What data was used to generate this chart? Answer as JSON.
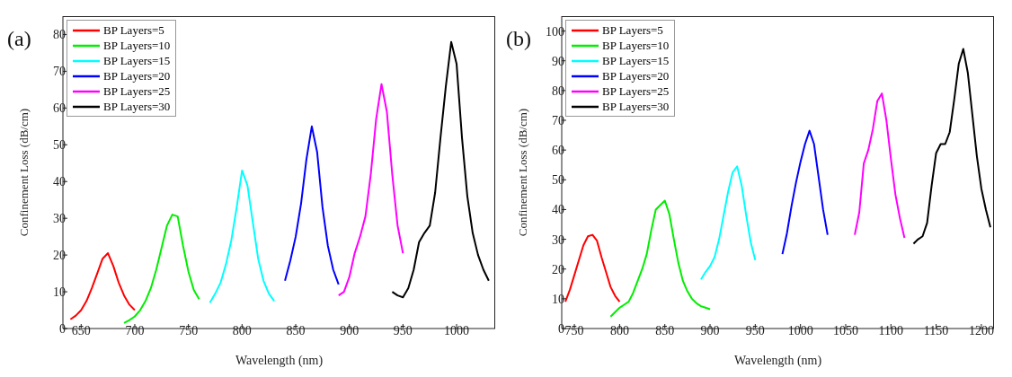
{
  "chart_data": [
    {
      "type": "line",
      "title": "(a)",
      "xlabel": "Wavelength (nm)",
      "ylabel": "Confinement Loss (dB/cm)",
      "xlim": [
        633,
        1036
      ],
      "xticks": [
        650,
        700,
        750,
        800,
        850,
        900,
        950,
        1000
      ],
      "ylim": [
        0,
        85
      ],
      "yticks": [
        0,
        10,
        20,
        30,
        40,
        50,
        60,
        70,
        80
      ],
      "legend": "top left",
      "grid": false,
      "marker": "none",
      "line_style": "solid",
      "series": [
        {
          "name": "BP Layers=5",
          "color": "#ff0000",
          "x": [
            640,
            645,
            650,
            655,
            660,
            665,
            670,
            675,
            680,
            685,
            690,
            695,
            700
          ],
          "values": [
            2.5,
            3.5,
            5,
            7.5,
            11,
            15,
            19,
            20.5,
            17,
            12.5,
            9,
            6.5,
            5
          ]
        },
        {
          "name": "BP Layers=10",
          "color": "#00ee00",
          "x": [
            690,
            695,
            700,
            705,
            710,
            715,
            720,
            725,
            730,
            735,
            740,
            745,
            750,
            755,
            760
          ],
          "values": [
            1.5,
            2.3,
            3.3,
            5,
            7.5,
            11,
            16,
            22,
            28,
            31,
            30.5,
            22.5,
            15.5,
            10.5,
            8
          ]
        },
        {
          "name": "BP Layers=15",
          "color": "#00ffff",
          "x": [
            770,
            775,
            780,
            785,
            790,
            795,
            800,
            805,
            810,
            815,
            820,
            825,
            830
          ],
          "values": [
            7,
            9.5,
            12.5,
            17.5,
            24,
            33,
            43,
            39,
            29,
            19,
            13,
            9.5,
            7.5
          ]
        },
        {
          "name": "BP Layers=20",
          "color": "#0000ff",
          "x": [
            840,
            845,
            850,
            855,
            860,
            865,
            870,
            875,
            880,
            885,
            890
          ],
          "values": [
            13,
            18.5,
            25,
            34,
            46,
            55,
            48,
            33,
            22.5,
            16,
            12
          ]
        },
        {
          "name": "BP Layers=25",
          "color": "#ff00ff",
          "x": [
            890,
            895,
            900,
            905,
            910,
            915,
            920,
            925,
            930,
            935,
            940,
            945,
            950
          ],
          "values": [
            9,
            10,
            14,
            20.5,
            25,
            30.5,
            42,
            57,
            66.5,
            59,
            42,
            28,
            20.5
          ]
        },
        {
          "name": "BP Layers=30",
          "color": "#000000",
          "x": [
            940,
            945,
            950,
            955,
            960,
            965,
            970,
            975,
            980,
            985,
            990,
            995,
            1000,
            1005,
            1010,
            1015,
            1020,
            1025,
            1030
          ],
          "values": [
            10,
            9,
            8.5,
            11,
            16,
            23.5,
            26,
            28,
            37,
            52,
            66,
            78,
            72,
            52,
            36,
            26,
            20,
            16,
            13
          ]
        }
      ]
    },
    {
      "type": "line",
      "title": "(b)",
      "xlabel": "Wavelength (nm)",
      "ylabel": "Confinement Loss (dB/cm)",
      "xlim": [
        736,
        1214
      ],
      "xticks": [
        750,
        800,
        850,
        900,
        950,
        1000,
        1050,
        1100,
        1150,
        1200
      ],
      "ylim": [
        0,
        105
      ],
      "yticks": [
        0,
        10,
        20,
        30,
        40,
        50,
        60,
        70,
        80,
        90,
        100
      ],
      "legend": "top left",
      "grid": false,
      "marker": "none",
      "line_style": "solid",
      "series": [
        {
          "name": "BP Layers=5",
          "color": "#ff0000",
          "x": [
            740,
            745,
            750,
            755,
            760,
            765,
            770,
            775,
            780,
            785,
            790,
            795,
            800
          ],
          "values": [
            9,
            13,
            18,
            23,
            28,
            31,
            31.5,
            29.5,
            24,
            19,
            14,
            11,
            9
          ]
        },
        {
          "name": "BP Layers=10",
          "color": "#00ee00",
          "x": [
            790,
            795,
            800,
            805,
            810,
            815,
            820,
            825,
            830,
            835,
            840,
            845,
            850,
            855,
            860,
            865,
            870,
            875,
            880,
            885,
            890,
            895,
            900
          ],
          "values": [
            4,
            5.5,
            7,
            8,
            9,
            12,
            16,
            20,
            25,
            33,
            40,
            41.5,
            43,
            38.5,
            30,
            22,
            16,
            12.5,
            10,
            8.5,
            7.5,
            7,
            6.5
          ]
        },
        {
          "name": "BP Layers=15",
          "color": "#00ffff",
          "x": [
            890,
            895,
            900,
            905,
            910,
            915,
            920,
            925,
            930,
            935,
            940,
            945,
            950
          ],
          "values": [
            16.5,
            19,
            21,
            24,
            30,
            38,
            46,
            52.5,
            54.5,
            48,
            38,
            29,
            23
          ]
        },
        {
          "name": "BP Layers=20",
          "color": "#0000ff",
          "x": [
            980,
            985,
            990,
            995,
            1000,
            1005,
            1010,
            1015,
            1020,
            1025,
            1030
          ],
          "values": [
            25,
            32,
            41,
            49,
            56,
            62,
            66.5,
            62,
            51,
            40,
            31.5
          ]
        },
        {
          "name": "BP Layers=25",
          "color": "#ff00ff",
          "x": [
            1060,
            1065,
            1070,
            1075,
            1080,
            1085,
            1090,
            1095,
            1100,
            1105,
            1110,
            1115
          ],
          "values": [
            31.5,
            39,
            55.5,
            60,
            67,
            76.5,
            79,
            70,
            57,
            45,
            37,
            30.5
          ]
        },
        {
          "name": "BP Layers=30",
          "color": "#000000",
          "x": [
            1125,
            1130,
            1135,
            1140,
            1145,
            1150,
            1155,
            1160,
            1165,
            1170,
            1175,
            1180,
            1185,
            1190,
            1195,
            1200,
            1205,
            1210
          ],
          "values": [
            28.5,
            30,
            31,
            35.5,
            48,
            59,
            62,
            62,
            66,
            77,
            89,
            94,
            86,
            72,
            58,
            47,
            40,
            34
          ]
        }
      ]
    }
  ]
}
